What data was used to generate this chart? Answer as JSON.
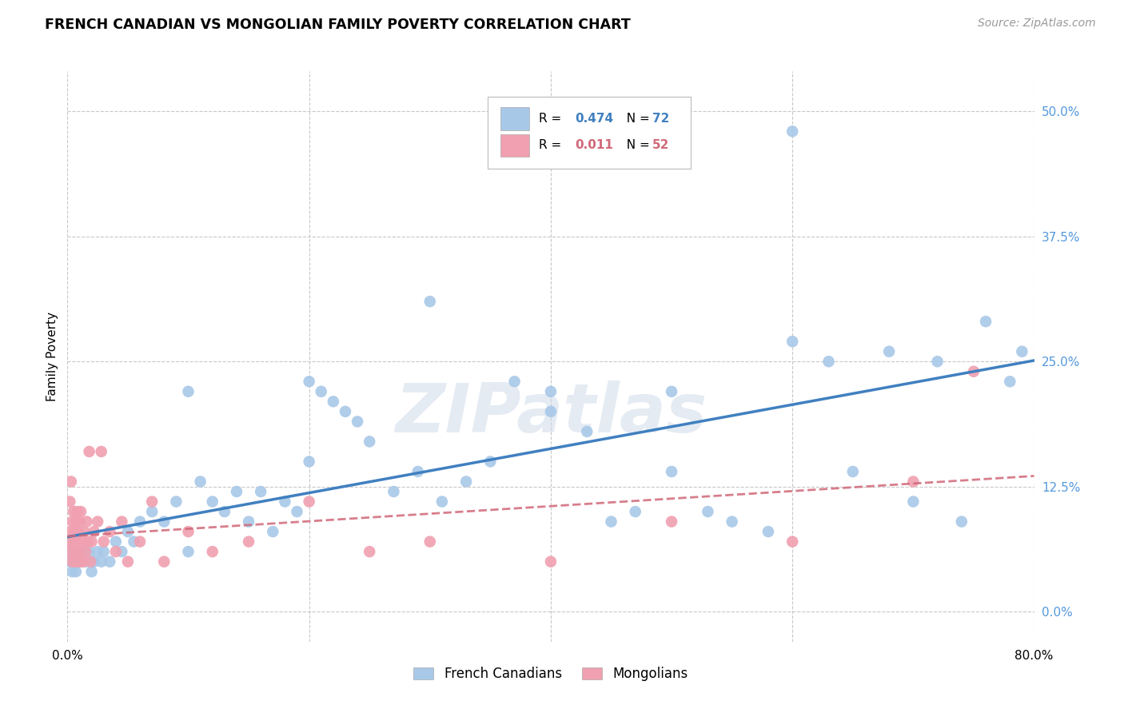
{
  "title": "FRENCH CANADIAN VS MONGOLIAN FAMILY POVERTY CORRELATION CHART",
  "source": "Source: ZipAtlas.com",
  "ylabel": "Family Poverty",
  "xlim": [
    0.0,
    0.8
  ],
  "ylim": [
    -0.03,
    0.54
  ],
  "yticks": [
    0.0,
    0.125,
    0.25,
    0.375,
    0.5
  ],
  "ytick_labels": [
    "0.0%",
    "12.5%",
    "25.0%",
    "37.5%",
    "50.0%"
  ],
  "xticks": [
    0.0,
    0.2,
    0.4,
    0.6,
    0.8
  ],
  "xtick_labels": [
    "0.0%",
    "",
    "",
    "",
    "80.0%"
  ],
  "background_color": "#ffffff",
  "grid_color": "#c8c8c8",
  "blue_dot_color": "#a8c8e8",
  "blue_line_color": "#4080c0",
  "pink_dot_color": "#f0a0b0",
  "pink_line_color": "#d06878",
  "r_blue": "0.474",
  "n_blue": "72",
  "r_pink": "0.011",
  "n_pink": "52",
  "legend_label_blue": "French Canadians",
  "legend_label_pink": "Mongolians",
  "watermark": "ZIPatlas",
  "fc_x": [
    0.002,
    0.003,
    0.004,
    0.005,
    0.006,
    0.007,
    0.008,
    0.009,
    0.01,
    0.012,
    0.015,
    0.018,
    0.02,
    0.022,
    0.025,
    0.028,
    0.03,
    0.035,
    0.04,
    0.045,
    0.05,
    0.055,
    0.06,
    0.07,
    0.08,
    0.09,
    0.1,
    0.11,
    0.12,
    0.13,
    0.14,
    0.15,
    0.16,
    0.17,
    0.18,
    0.19,
    0.2,
    0.21,
    0.22,
    0.23,
    0.24,
    0.25,
    0.27,
    0.29,
    0.31,
    0.33,
    0.35,
    0.37,
    0.4,
    0.43,
    0.45,
    0.47,
    0.5,
    0.53,
    0.55,
    0.58,
    0.6,
    0.63,
    0.65,
    0.68,
    0.7,
    0.72,
    0.74,
    0.76,
    0.78,
    0.79,
    0.1,
    0.2,
    0.3,
    0.4,
    0.6,
    0.5
  ],
  "fc_y": [
    0.05,
    0.06,
    0.04,
    0.05,
    0.06,
    0.04,
    0.05,
    0.06,
    0.05,
    0.06,
    0.05,
    0.06,
    0.04,
    0.05,
    0.06,
    0.05,
    0.06,
    0.05,
    0.07,
    0.06,
    0.08,
    0.07,
    0.09,
    0.1,
    0.09,
    0.11,
    0.06,
    0.13,
    0.11,
    0.1,
    0.12,
    0.09,
    0.12,
    0.08,
    0.11,
    0.1,
    0.15,
    0.22,
    0.21,
    0.2,
    0.19,
    0.17,
    0.12,
    0.14,
    0.11,
    0.13,
    0.15,
    0.23,
    0.2,
    0.18,
    0.09,
    0.1,
    0.14,
    0.1,
    0.09,
    0.08,
    0.27,
    0.25,
    0.14,
    0.26,
    0.11,
    0.25,
    0.09,
    0.29,
    0.23,
    0.26,
    0.22,
    0.23,
    0.31,
    0.22,
    0.48,
    0.22
  ],
  "mg_x": [
    0.001,
    0.002,
    0.002,
    0.003,
    0.003,
    0.004,
    0.004,
    0.005,
    0.005,
    0.006,
    0.006,
    0.007,
    0.007,
    0.008,
    0.008,
    0.009,
    0.009,
    0.01,
    0.01,
    0.011,
    0.011,
    0.012,
    0.013,
    0.014,
    0.015,
    0.016,
    0.017,
    0.018,
    0.019,
    0.02,
    0.022,
    0.025,
    0.028,
    0.03,
    0.035,
    0.04,
    0.045,
    0.05,
    0.06,
    0.07,
    0.08,
    0.1,
    0.12,
    0.15,
    0.2,
    0.25,
    0.3,
    0.4,
    0.5,
    0.6,
    0.7,
    0.75
  ],
  "mg_y": [
    0.06,
    0.11,
    0.07,
    0.08,
    0.13,
    0.05,
    0.09,
    0.07,
    0.1,
    0.05,
    0.08,
    0.06,
    0.09,
    0.07,
    0.1,
    0.05,
    0.08,
    0.06,
    0.09,
    0.05,
    0.1,
    0.07,
    0.05,
    0.08,
    0.06,
    0.09,
    0.07,
    0.16,
    0.05,
    0.07,
    0.08,
    0.09,
    0.16,
    0.07,
    0.08,
    0.06,
    0.09,
    0.05,
    0.07,
    0.11,
    0.05,
    0.08,
    0.06,
    0.07,
    0.11,
    0.06,
    0.07,
    0.05,
    0.09,
    0.07,
    0.13,
    0.24
  ]
}
